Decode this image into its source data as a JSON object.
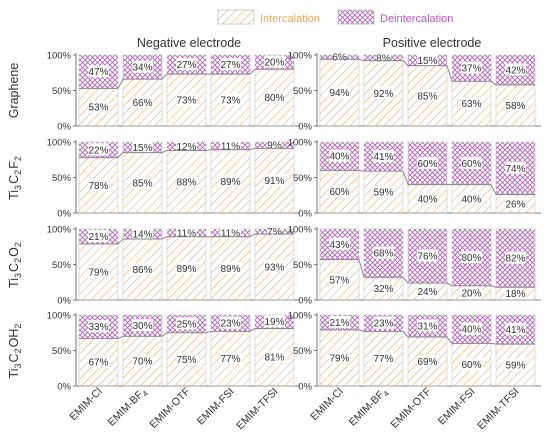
{
  "colors": {
    "intercalation": "#f0a75a",
    "deintercalation": "#b05ab8",
    "connector": "#888888",
    "axis": "#555555",
    "text": "#333333"
  },
  "legend": {
    "intercalation_label": "Intercalation",
    "deintercalation_label": "Deintercalation"
  },
  "columns": {
    "negative_title": "Negative electrode",
    "positive_title": "Positive electrode"
  },
  "y_tick_labels": [
    "0%",
    "50%",
    "100%"
  ],
  "x_tick_labels": [
    "EMIM-Cl",
    "EMIM-BF4",
    "EMIM-OTF",
    "EMIM-FSI",
    "EMIM-TFSI"
  ],
  "x_tick_labels_display": [
    {
      "base": "EMIM-Cl",
      "sub": ""
    },
    {
      "base": "EMIM-BF",
      "sub": "4"
    },
    {
      "base": "EMIM-OTF",
      "sub": ""
    },
    {
      "base": "EMIM-FSI",
      "sub": ""
    },
    {
      "base": "EMIM-TFSI",
      "sub": ""
    }
  ],
  "row_labels": [
    {
      "text": "Graphene",
      "parts": [
        [
          "Graphene",
          ""
        ]
      ]
    },
    {
      "text": "Ti3C2F2",
      "parts": [
        [
          "Ti",
          "3"
        ],
        [
          "C",
          "2"
        ],
        [
          "F",
          "2"
        ]
      ]
    },
    {
      "text": "Ti3C2O2",
      "parts": [
        [
          "Ti",
          "3"
        ],
        [
          "C",
          "2"
        ],
        [
          "O",
          "2"
        ]
      ]
    },
    {
      "text": "Ti3C2OH2",
      "parts": [
        [
          "Ti",
          "3"
        ],
        [
          "C",
          "2"
        ],
        [
          "OH",
          "2"
        ]
      ]
    }
  ],
  "chart_data": {
    "type": "bar",
    "stacked": true,
    "categories": [
      "EMIM-Cl",
      "EMIM-BF4",
      "EMIM-OTF",
      "EMIM-FSI",
      "EMIM-TFSI"
    ],
    "ylim": [
      0,
      100
    ],
    "series_names": [
      "Intercalation",
      "Deintercalation"
    ],
    "panels": [
      {
        "row": "Graphene",
        "electrode": "Negative electrode",
        "intercalation": [
          53,
          66,
          73,
          73,
          80
        ],
        "deintercalation": [
          47,
          34,
          27,
          27,
          20
        ]
      },
      {
        "row": "Graphene",
        "electrode": "Positive electrode",
        "intercalation": [
          94,
          92,
          85,
          63,
          58
        ],
        "deintercalation": [
          6,
          8,
          15,
          37,
          42
        ]
      },
      {
        "row": "Ti3C2F2",
        "electrode": "Negative electrode",
        "intercalation": [
          78,
          85,
          88,
          89,
          91
        ],
        "deintercalation": [
          22,
          15,
          12,
          11,
          9
        ]
      },
      {
        "row": "Ti3C2F2",
        "electrode": "Positive electrode",
        "intercalation": [
          60,
          59,
          40,
          40,
          26
        ],
        "deintercalation": [
          40,
          41,
          60,
          60,
          74
        ]
      },
      {
        "row": "Ti3C2O2",
        "electrode": "Negative electrode",
        "intercalation": [
          79,
          86,
          89,
          89,
          93
        ],
        "deintercalation": [
          21,
          14,
          11,
          11,
          7
        ]
      },
      {
        "row": "Ti3C2O2",
        "electrode": "Positive electrode",
        "intercalation": [
          57,
          32,
          24,
          20,
          18
        ],
        "deintercalation": [
          43,
          68,
          76,
          80,
          82
        ]
      },
      {
        "row": "Ti3C2OH2",
        "electrode": "Negative electrode",
        "intercalation": [
          67,
          70,
          75,
          77,
          81
        ],
        "deintercalation": [
          33,
          30,
          25,
          23,
          19
        ]
      },
      {
        "row": "Ti3C2OH2",
        "electrode": "Positive electrode",
        "intercalation": [
          79,
          77,
          69,
          60,
          59
        ],
        "deintercalation": [
          21,
          23,
          31,
          40,
          41
        ]
      }
    ]
  }
}
